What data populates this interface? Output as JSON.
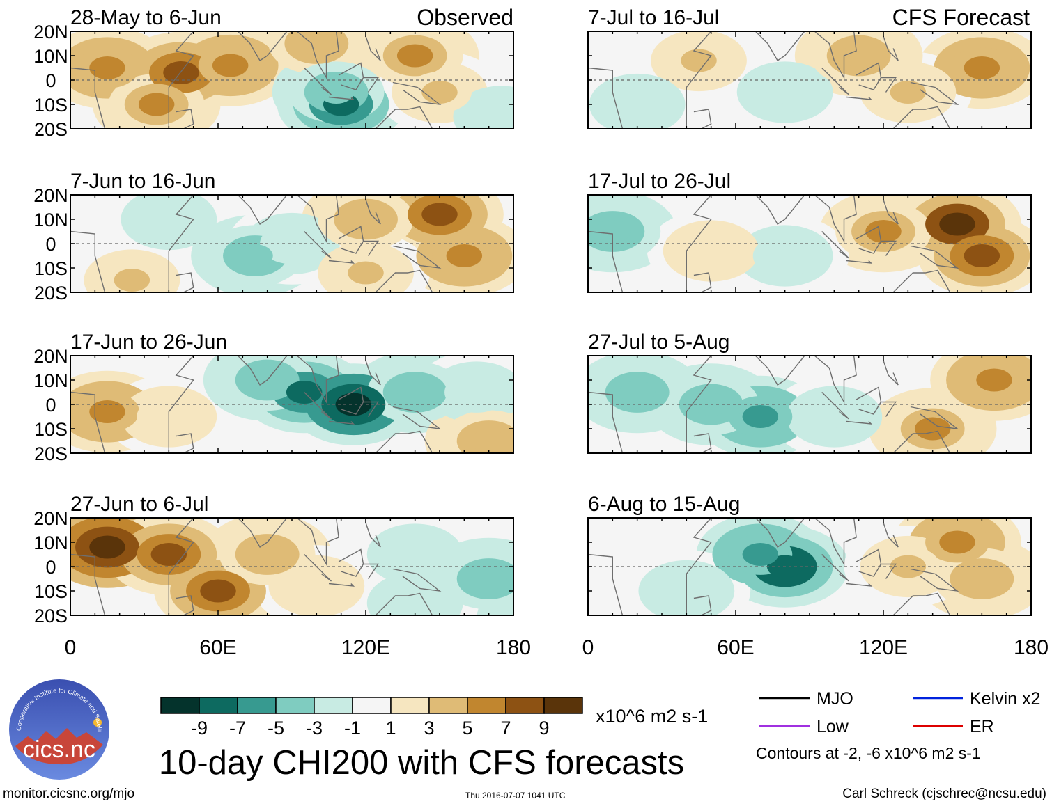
{
  "header": {
    "observed_label": "Observed",
    "forecast_label": "CFS Forecast"
  },
  "y_tick_labels": [
    "20N",
    "10N",
    "0",
    "10S",
    "20S"
  ],
  "x_tick_labels": [
    "0",
    "60E",
    "120E",
    "180"
  ],
  "chart_data": {
    "type": "heatmap",
    "title": "10-day CHI200 with CFS forecasts",
    "variable": "CHI200",
    "units": "x10^6 m2 s-1",
    "lon_range": [
      0,
      180
    ],
    "lat_range": [
      -20,
      20
    ],
    "legend": {
      "bins": [
        -11,
        -9,
        -7,
        -5,
        -3,
        -1,
        1,
        3,
        5,
        7,
        9,
        11
      ],
      "tick_labels": [
        "-9",
        "-7",
        "-5",
        "-3",
        "-1",
        "1",
        "3",
        "5",
        "7",
        "9"
      ],
      "colors": [
        "#04332c",
        "#0d6a60",
        "#379a90",
        "#7fccc0",
        "#c8ebe3",
        "#f5f5f5",
        "#f6e6c0",
        "#dfbb76",
        "#c1862f",
        "#8d5213",
        "#5a340a"
      ]
    },
    "contour_legend": [
      {
        "name": "MJO",
        "color": "#000000"
      },
      {
        "name": "Low",
        "color": "#a030e0"
      },
      {
        "name": "Kelvin x2",
        "color": "#0022dd"
      },
      {
        "name": "ER",
        "color": "#dd0000"
      }
    ],
    "contour_note": "Contours at -2, -6 x10^6 m2 s-1",
    "panels": [
      {
        "period": "28-May to 6-Jun",
        "source": "observed",
        "blobs": [
          {
            "lon": 15,
            "lat": 5,
            "v": 6
          },
          {
            "lon": 45,
            "lat": 3,
            "v": 7
          },
          {
            "lon": 65,
            "lat": 6,
            "v": 6
          },
          {
            "lon": 35,
            "lat": -10,
            "v": 5
          },
          {
            "lon": 100,
            "lat": 15,
            "v": 4
          },
          {
            "lon": 110,
            "lat": -10,
            "v": -8
          },
          {
            "lon": 108,
            "lat": -5,
            "v": -5
          },
          {
            "lon": 140,
            "lat": 10,
            "v": 5
          },
          {
            "lon": 150,
            "lat": -5,
            "v": 3
          },
          {
            "lon": 175,
            "lat": -15,
            "v": -3
          }
        ]
      },
      {
        "period": "7-Jun to 16-Jun",
        "source": "observed",
        "blobs": [
          {
            "lon": 40,
            "lat": 10,
            "v": -3
          },
          {
            "lon": 75,
            "lat": -5,
            "v": -4
          },
          {
            "lon": 90,
            "lat": 0,
            "v": -3
          },
          {
            "lon": 150,
            "lat": 12,
            "v": 7
          },
          {
            "lon": 160,
            "lat": -5,
            "v": 6
          },
          {
            "lon": 120,
            "lat": 10,
            "v": 4
          },
          {
            "lon": 25,
            "lat": -15,
            "v": 3
          },
          {
            "lon": 120,
            "lat": -12,
            "v": 3
          }
        ]
      },
      {
        "period": "17-Jun to 26-Jun",
        "source": "observed",
        "blobs": [
          {
            "lon": 15,
            "lat": -3,
            "v": 6
          },
          {
            "lon": 40,
            "lat": -5,
            "v": 2
          },
          {
            "lon": 95,
            "lat": 5,
            "v": -8
          },
          {
            "lon": 115,
            "lat": 0,
            "v": -10
          },
          {
            "lon": 80,
            "lat": 10,
            "v": -5
          },
          {
            "lon": 140,
            "lat": 5,
            "v": -5
          },
          {
            "lon": 165,
            "lat": 5,
            "v": -3
          },
          {
            "lon": 170,
            "lat": -15,
            "v": 4
          }
        ]
      },
      {
        "period": "27-Jun to 6-Jul",
        "source": "observed",
        "blobs": [
          {
            "lon": 15,
            "lat": 8,
            "v": 10
          },
          {
            "lon": 40,
            "lat": 5,
            "v": 7
          },
          {
            "lon": 60,
            "lat": -10,
            "v": 7
          },
          {
            "lon": 80,
            "lat": 5,
            "v": 4
          },
          {
            "lon": 100,
            "lat": -8,
            "v": 2
          },
          {
            "lon": 140,
            "lat": 5,
            "v": -3
          },
          {
            "lon": 170,
            "lat": -5,
            "v": -4
          },
          {
            "lon": 140,
            "lat": -15,
            "v": -2
          }
        ]
      },
      {
        "period": "7-Jul to 16-Jul",
        "source": "forecast",
        "blobs": [
          {
            "lon": 45,
            "lat": 8,
            "v": 3
          },
          {
            "lon": 80,
            "lat": -5,
            "v": -3
          },
          {
            "lon": 160,
            "lat": 5,
            "v": 6
          },
          {
            "lon": 130,
            "lat": -5,
            "v": 3
          },
          {
            "lon": 110,
            "lat": 10,
            "v": 4
          },
          {
            "lon": 20,
            "lat": -10,
            "v": -2
          }
        ]
      },
      {
        "period": "17-Jul to 26-Jul",
        "source": "forecast",
        "blobs": [
          {
            "lon": 150,
            "lat": 8,
            "v": 9
          },
          {
            "lon": 160,
            "lat": -5,
            "v": 7
          },
          {
            "lon": 120,
            "lat": 5,
            "v": 5
          },
          {
            "lon": 80,
            "lat": -5,
            "v": -3
          },
          {
            "lon": 10,
            "lat": 5,
            "v": -5
          },
          {
            "lon": 50,
            "lat": -3,
            "v": 2
          }
        ]
      },
      {
        "period": "27-Jul to 5-Aug",
        "source": "forecast",
        "blobs": [
          {
            "lon": 20,
            "lat": 5,
            "v": -5
          },
          {
            "lon": 70,
            "lat": -5,
            "v": -6
          },
          {
            "lon": 50,
            "lat": 0,
            "v": -4
          },
          {
            "lon": 100,
            "lat": -5,
            "v": -3
          },
          {
            "lon": 165,
            "lat": 10,
            "v": 6
          },
          {
            "lon": 140,
            "lat": -10,
            "v": 5
          }
        ]
      },
      {
        "period": "6-Aug to 15-Aug",
        "source": "forecast",
        "blobs": [
          {
            "lon": 80,
            "lat": 0,
            "v": -9
          },
          {
            "lon": 70,
            "lat": 5,
            "v": -6
          },
          {
            "lon": 40,
            "lat": -10,
            "v": -2
          },
          {
            "lon": 150,
            "lat": 10,
            "v": 6
          },
          {
            "lon": 160,
            "lat": -5,
            "v": 4
          },
          {
            "lon": 130,
            "lat": 0,
            "v": 3
          }
        ]
      }
    ]
  },
  "branding": {
    "logo_text": "cics.nc",
    "logo_ring_text": "Cooperative Institute for Climate and Satellites"
  },
  "footer": {
    "url": "monitor.cicsnc.org/mjo",
    "timestamp": "Thu 2016-07-07 1041 UTC",
    "author": "Carl Schreck (cjschrec@ncsu.edu)"
  }
}
